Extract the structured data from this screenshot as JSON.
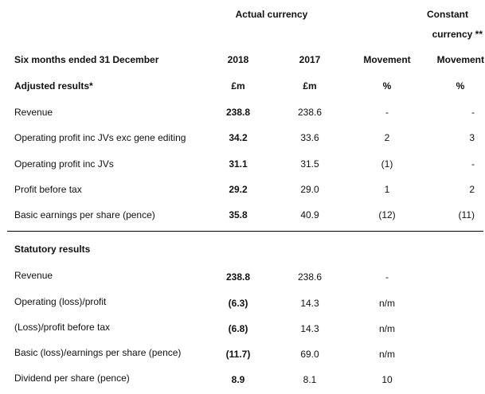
{
  "header": {
    "actual_currency": "Actual currency",
    "constant_line1": "Constant",
    "constant_line2": "currency **",
    "period_label": "Six months ended 31 December",
    "col_2018": "2018",
    "col_2017": "2017",
    "col_movement": "Movement",
    "col_cc_movement": "Movement"
  },
  "adjusted": {
    "title": "Adjusted results*",
    "unit_2018": "£m",
    "unit_2017": "£m",
    "unit_movement": "%",
    "unit_cc": "%",
    "rows": [
      {
        "label": "Revenue",
        "v2018": "238.8",
        "v2017": "238.6",
        "movement": "-",
        "cc": "-"
      },
      {
        "label": "Operating profit inc JVs exc gene editing",
        "v2018": "34.2",
        "v2017": "33.6",
        "movement": "2",
        "cc": "3"
      },
      {
        "label": "Operating profit inc JVs",
        "v2018": "31.1",
        "v2017": "31.5",
        "movement": "(1)",
        "cc": "-"
      },
      {
        "label": "Profit before tax",
        "v2018": "29.2",
        "v2017": "29.0",
        "movement": "1",
        "cc": "2"
      },
      {
        "label": "Basic earnings per share (pence)",
        "v2018": "35.8",
        "v2017": "40.9",
        "movement": "(12)",
        "cc": "(11)"
      }
    ]
  },
  "statutory": {
    "title": "Statutory results",
    "rows": [
      {
        "label": "Revenue",
        "v2018": "238.8",
        "v2017": "238.6",
        "movement": "-"
      },
      {
        "label": "Operating (loss)/profit",
        "v2018": "(6.3)",
        "v2017": "14.3",
        "movement": "n/m"
      },
      {
        "label": "(Loss)/profit before tax",
        "v2018": "(6.8)",
        "v2017": "14.3",
        "movement": "n/m"
      },
      {
        "label": "Basic (loss)/earnings per share (pence)",
        "v2018": "(11.7)",
        "v2017": "69.0",
        "movement": "n/m"
      },
      {
        "label": "Dividend per share (pence)",
        "v2018": "8.9",
        "v2017": "8.1",
        "movement": "10"
      }
    ]
  }
}
